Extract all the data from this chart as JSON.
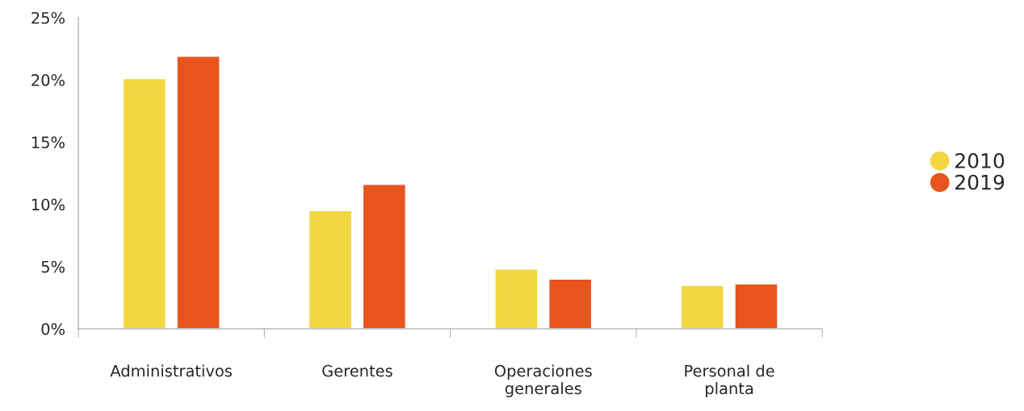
{
  "chart_data": {
    "type": "bar",
    "categories": [
      "Administrativos",
      "Gerentes",
      "Operaciones generales",
      "Personal de planta"
    ],
    "series": [
      {
        "name": "2010",
        "color": "#f2d640",
        "values": [
          20.1,
          9.5,
          4.8,
          3.5
        ]
      },
      {
        "name": "2019",
        "color": "#e8541e",
        "values": [
          21.9,
          11.6,
          4.0,
          3.6
        ]
      }
    ],
    "ylim": [
      0,
      25
    ],
    "yticks": [
      {
        "value": 0,
        "label": "0%"
      },
      {
        "value": 5,
        "label": "5%"
      },
      {
        "value": 10,
        "label": "10%"
      },
      {
        "value": 15,
        "label": "15%"
      },
      {
        "value": 20,
        "label": "20%"
      },
      {
        "value": 25,
        "label": "25%"
      }
    ],
    "grid": false,
    "legend": "right"
  }
}
